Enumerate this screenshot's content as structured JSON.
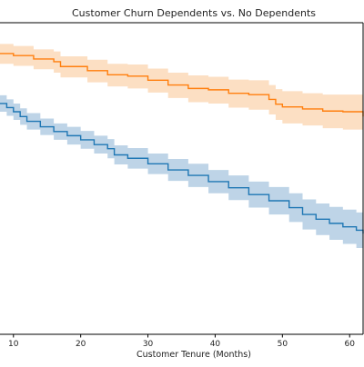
{
  "chart_data": {
    "type": "line",
    "title": "Customer Churn Dependents vs. No Dependents",
    "xlabel": "Customer Tenure (Months)",
    "ylabel": "",
    "xlim": [
      8,
      62
    ],
    "ylim": [
      0.535,
      0.99
    ],
    "xticks": [
      10,
      20,
      30,
      40,
      50,
      60
    ],
    "grid": false,
    "legend": "none",
    "step": true,
    "series": [
      {
        "color": "#ff7f0e",
        "band_color": "#fbd9b8",
        "x": [
          8,
          10,
          13,
          16,
          17,
          21,
          24,
          27,
          30,
          33,
          36,
          39,
          42,
          45,
          48,
          49,
          50,
          53,
          56,
          59,
          62
        ],
        "y": [
          0.945,
          0.942,
          0.937,
          0.933,
          0.926,
          0.92,
          0.914,
          0.912,
          0.906,
          0.899,
          0.894,
          0.892,
          0.887,
          0.885,
          0.878,
          0.871,
          0.867,
          0.864,
          0.861,
          0.86,
          0.853
        ],
        "lo": [
          0.93,
          0.927,
          0.922,
          0.917,
          0.91,
          0.903,
          0.897,
          0.894,
          0.888,
          0.88,
          0.874,
          0.872,
          0.866,
          0.863,
          0.856,
          0.848,
          0.843,
          0.84,
          0.836,
          0.834,
          0.826
        ],
        "hi": [
          0.959,
          0.956,
          0.951,
          0.948,
          0.941,
          0.936,
          0.93,
          0.929,
          0.923,
          0.917,
          0.913,
          0.911,
          0.907,
          0.906,
          0.899,
          0.893,
          0.89,
          0.887,
          0.885,
          0.885,
          0.879
        ]
      },
      {
        "color": "#1f77b4",
        "band_color": "#b3cde3",
        "x": [
          8,
          9,
          10,
          11,
          12,
          14,
          16,
          18,
          20,
          22,
          24,
          25,
          27,
          30,
          33,
          36,
          39,
          42,
          45,
          48,
          51,
          53,
          55,
          57,
          59,
          61,
          62
        ],
        "y": [
          0.872,
          0.866,
          0.86,
          0.853,
          0.846,
          0.838,
          0.831,
          0.825,
          0.819,
          0.812,
          0.806,
          0.797,
          0.792,
          0.784,
          0.775,
          0.767,
          0.758,
          0.749,
          0.739,
          0.73,
          0.72,
          0.71,
          0.703,
          0.697,
          0.692,
          0.687,
          0.682
        ],
        "lo": [
          0.86,
          0.854,
          0.848,
          0.841,
          0.834,
          0.826,
          0.819,
          0.812,
          0.806,
          0.799,
          0.792,
          0.783,
          0.777,
          0.769,
          0.759,
          0.75,
          0.741,
          0.731,
          0.72,
          0.71,
          0.699,
          0.688,
          0.68,
          0.673,
          0.667,
          0.661,
          0.655
        ],
        "hi": [
          0.884,
          0.878,
          0.872,
          0.865,
          0.858,
          0.85,
          0.843,
          0.838,
          0.832,
          0.825,
          0.82,
          0.811,
          0.807,
          0.799,
          0.791,
          0.784,
          0.775,
          0.767,
          0.758,
          0.75,
          0.741,
          0.732,
          0.726,
          0.721,
          0.717,
          0.713,
          0.709
        ]
      }
    ]
  }
}
